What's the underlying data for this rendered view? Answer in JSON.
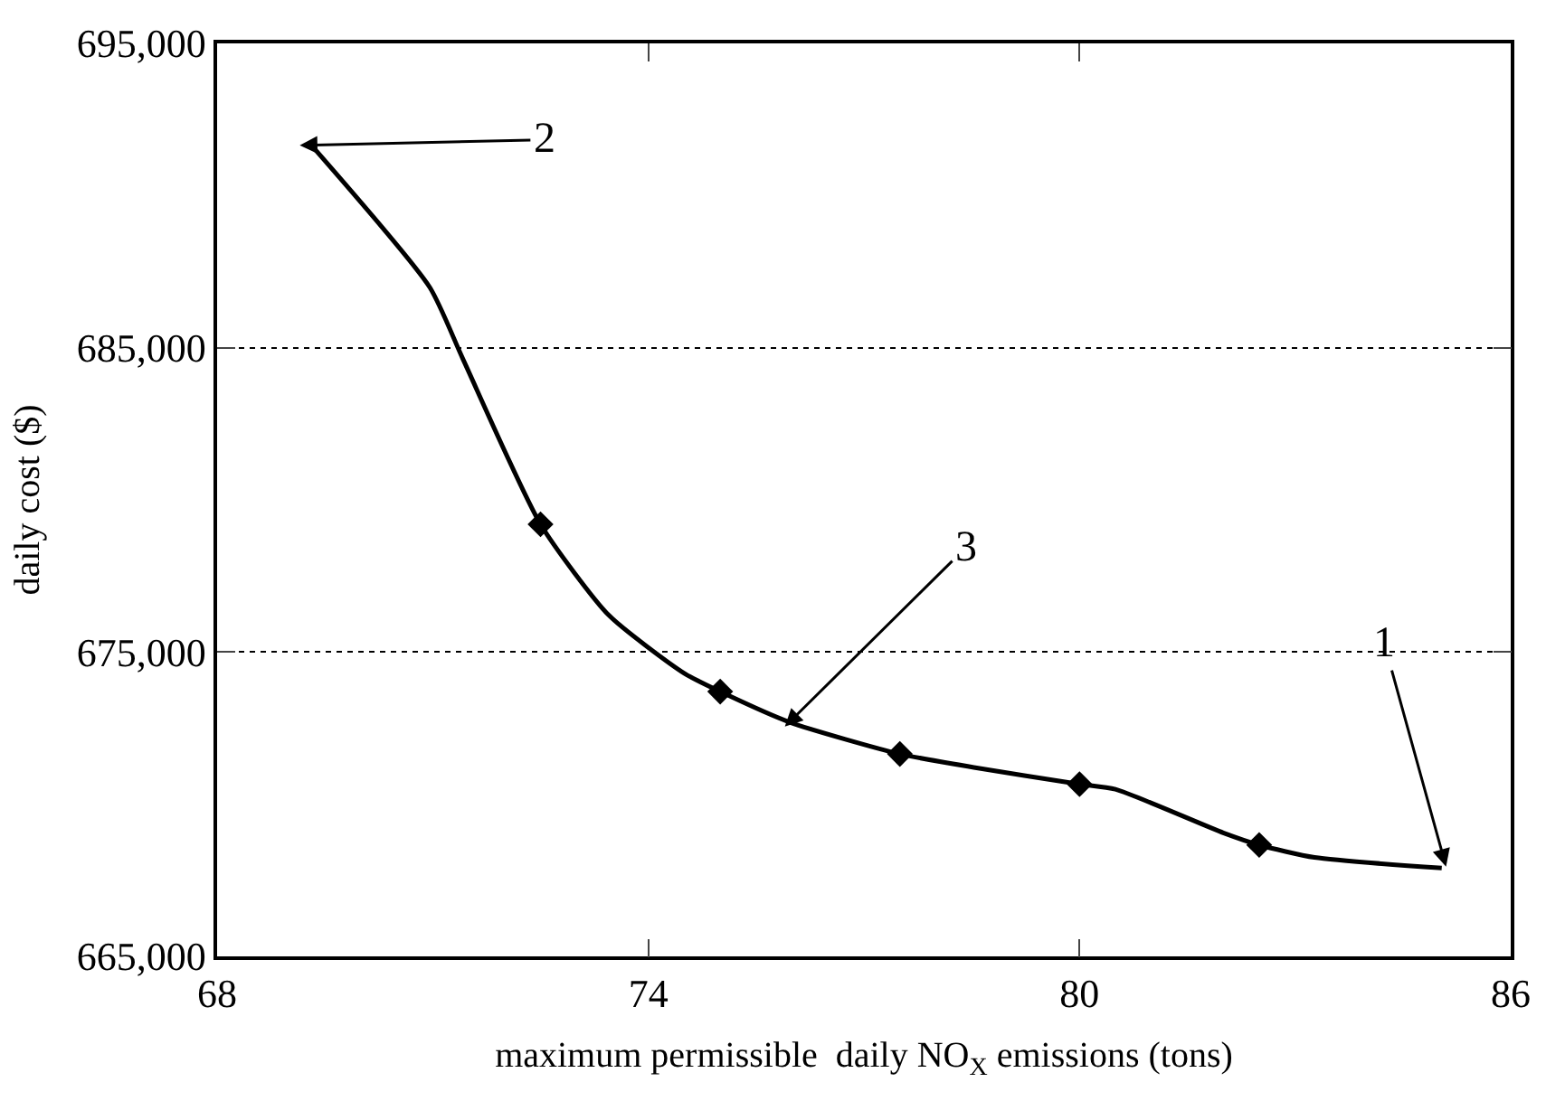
{
  "chart_data": {
    "type": "line",
    "xlabel": "maximum permissible  daily NO$_{X}$ emissions (tons)",
    "ylabel": "daily cost ($)",
    "series": [
      {
        "color": "#000000",
        "marker": "none",
        "line_style": "solid",
        "x": [
          69.35,
          70.96,
          71.42,
          72.5,
          73.45,
          74.5,
          75.0,
          75.97,
          77.5,
          78.53,
          80.0,
          80.5,
          82.0,
          82.5,
          83.27,
          85.04
        ],
        "values": [
          691550,
          686980,
          684630,
          679200,
          676210,
          674300,
          673700,
          672690,
          671650,
          671210,
          670660,
          670490,
          669060,
          668660,
          668250,
          667900
        ]
      },
      {
        "type": "scatter",
        "color": "#000000",
        "marker": "diamond",
        "x": [
          72.5,
          75.0,
          77.5,
          80.0,
          82.5
        ],
        "values": [
          679200,
          673700,
          671650,
          670660,
          668660
        ]
      }
    ],
    "xlim": [
      68,
      86
    ],
    "xticks": [
      68,
      74,
      80,
      86
    ],
    "ylim": [
      665000,
      695000
    ],
    "yticks": [
      {
        "value": 665000,
        "label": "665,000"
      },
      {
        "value": 675000,
        "label": "675,000"
      },
      {
        "value": 685000,
        "label": "685,000"
      },
      {
        "value": 695000,
        "label": "695,000"
      }
    ],
    "grid": "y",
    "annotations": [
      {
        "text": "1",
        "x": 85.1,
        "y": 667950
      },
      {
        "text": "2",
        "x": 69.15,
        "y": 691650
      },
      {
        "text": "3",
        "x": 75.9,
        "y": 672550
      }
    ]
  }
}
